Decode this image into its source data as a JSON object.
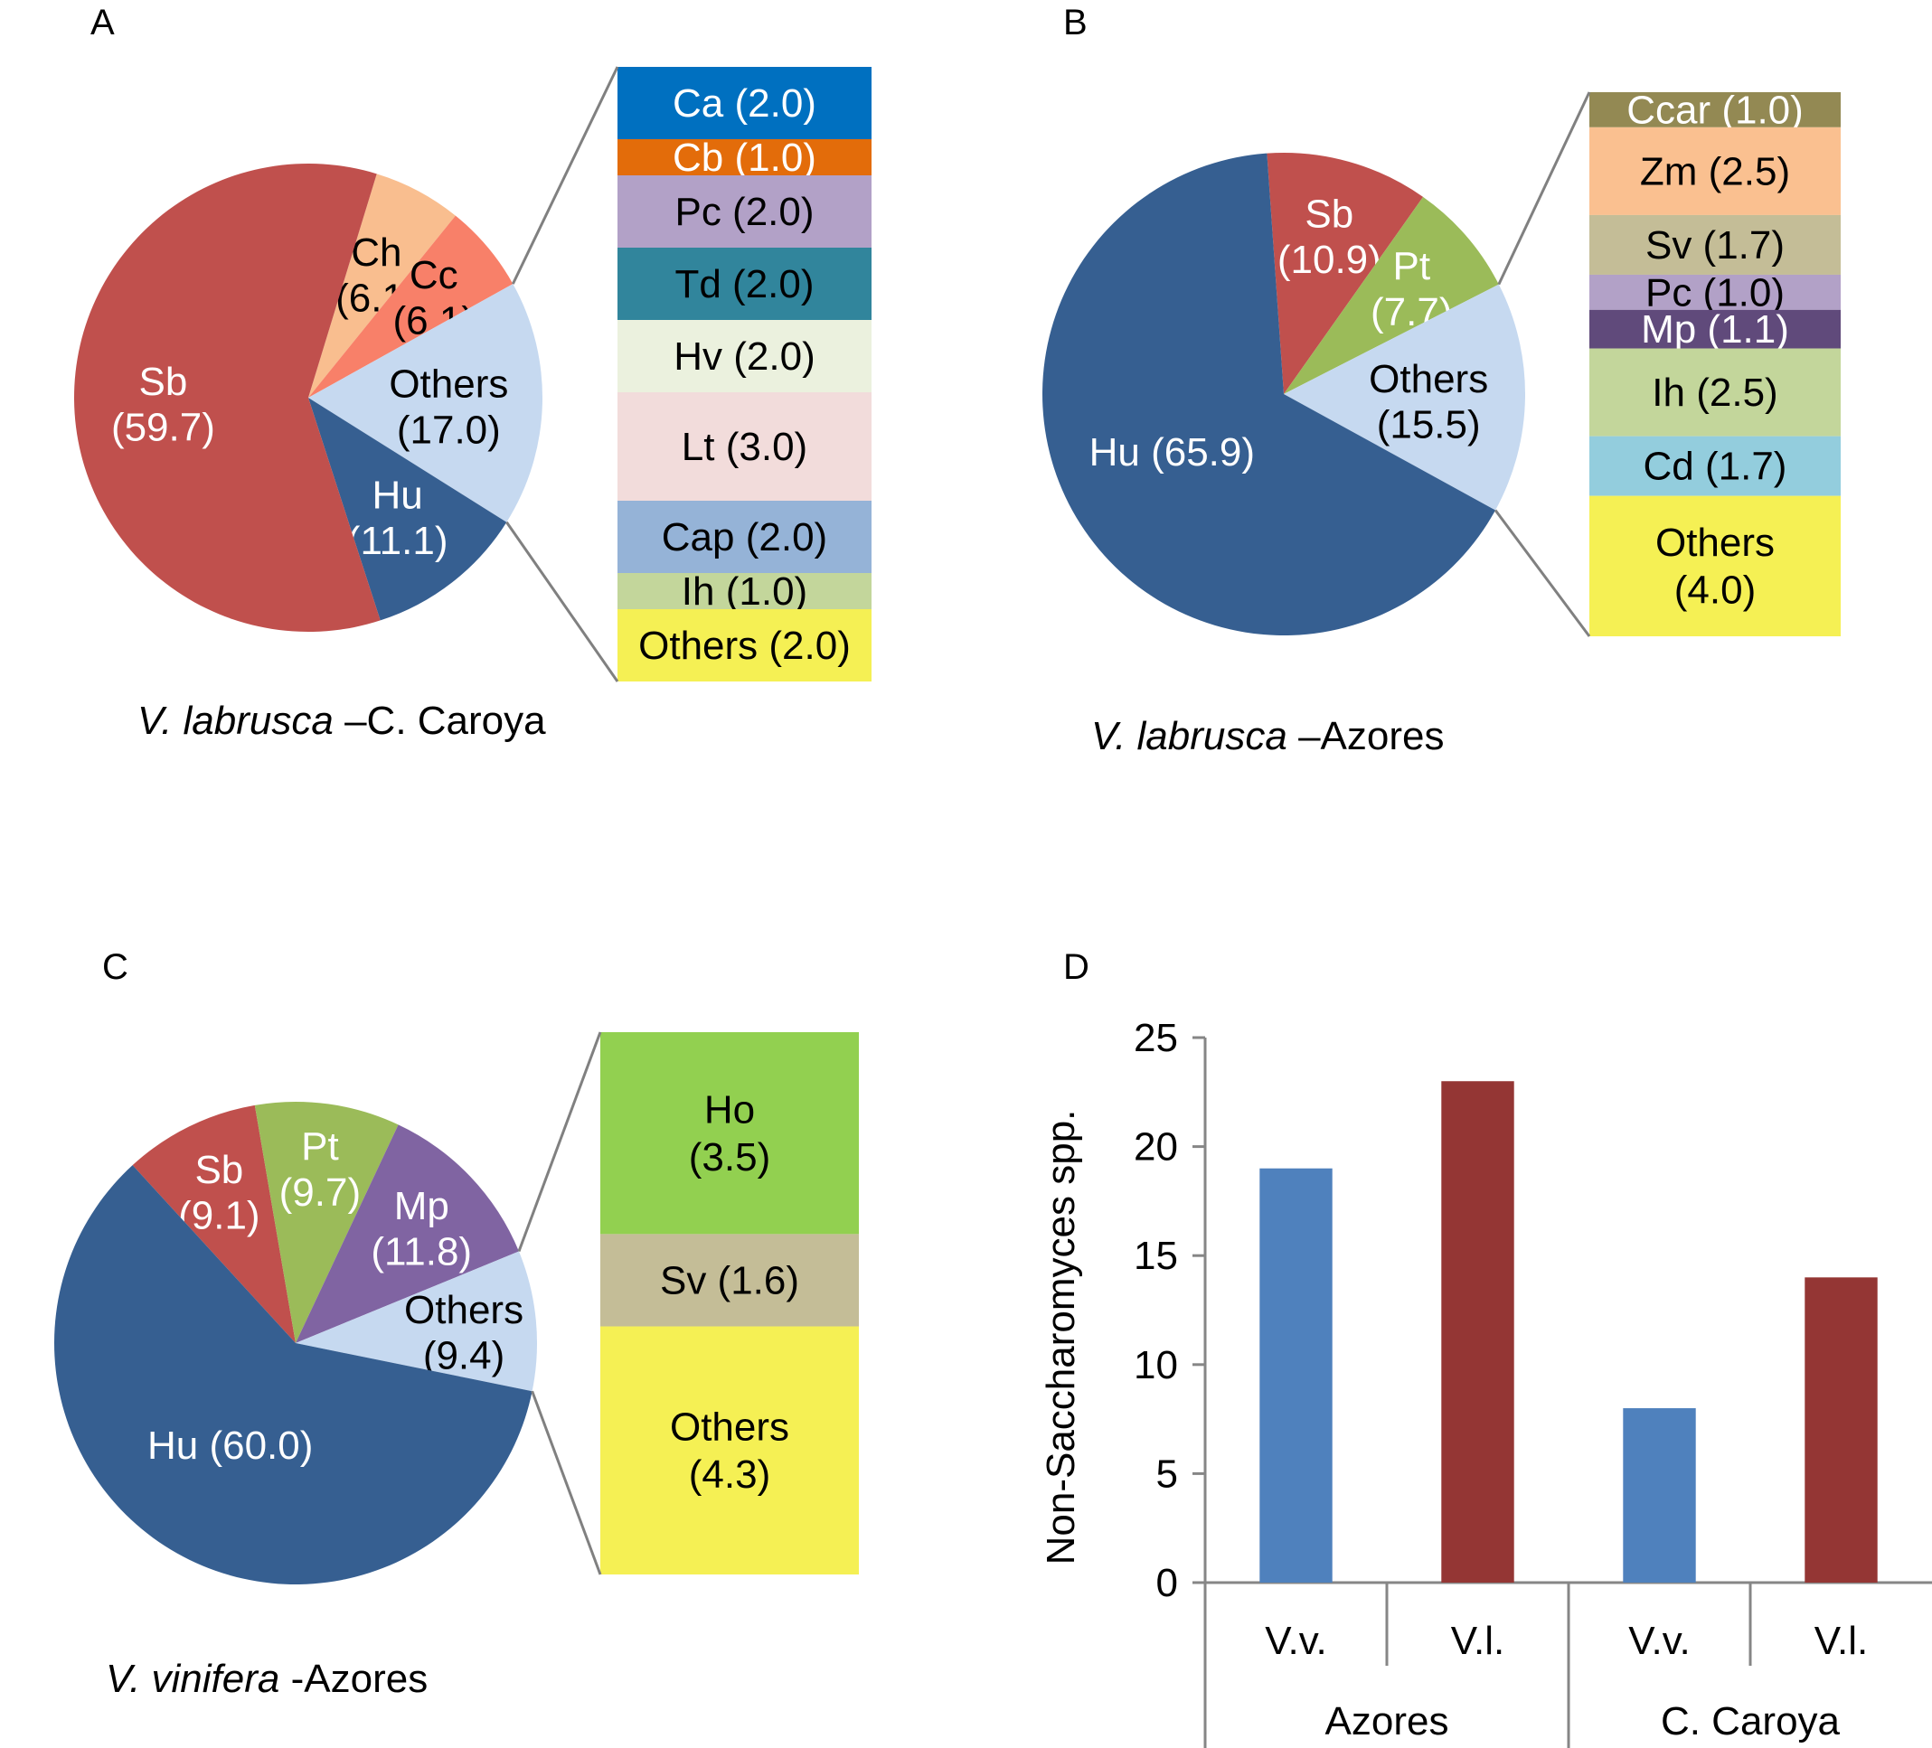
{
  "chart_data": [
    {
      "type": "pie",
      "panel": "A",
      "title": "V. labrusca –C. Caroya",
      "title_italic": "V. labrusca",
      "title_rest": " –C. Caroya",
      "slices": [
        {
          "label": "Ch",
          "value": 6.1,
          "color": "#F9BE8F",
          "text_color": "#000000"
        },
        {
          "label": "Cc",
          "value": 6.1,
          "color": "#F88069",
          "text_color": "#000000"
        },
        {
          "label": "Others",
          "value": 17.0,
          "color": "#C6D9F0",
          "text_color": "#000000"
        },
        {
          "label": "Hu",
          "value": 11.1,
          "color": "#365F91",
          "text_color": "#FFFFFF"
        },
        {
          "label": "Sb",
          "value": 59.7,
          "color": "#C0504D",
          "text_color": "#FFFFFF"
        }
      ],
      "breakdown": [
        {
          "label": "Ca",
          "value": 2.0,
          "color": "#0070C0",
          "text_color": "#FFFFFF"
        },
        {
          "label": "Cb",
          "value": 1.0,
          "color": "#E36C0A",
          "text_color": "#FFFFFF"
        },
        {
          "label": "Pc",
          "value": 2.0,
          "color": "#B2A1C7",
          "text_color": "#000000"
        },
        {
          "label": "Td",
          "value": 2.0,
          "color": "#31859C",
          "text_color": "#000000"
        },
        {
          "label": "Hv",
          "value": 2.0,
          "color": "#EBF1DE",
          "text_color": "#000000"
        },
        {
          "label": "Lt",
          "value": 3.0,
          "color": "#F2DCDB",
          "text_color": "#000000"
        },
        {
          "label": "Cap",
          "value": 2.0,
          "color": "#95B3D7",
          "text_color": "#000000"
        },
        {
          "label": "Ih",
          "value": 1.0,
          "color": "#C3D69B",
          "text_color": "#000000"
        },
        {
          "label": "Others",
          "value": 2.0,
          "color": "#F5F054",
          "text_color": "#000000"
        }
      ]
    },
    {
      "type": "pie",
      "panel": "B",
      "title": "V. labrusca –Azores",
      "title_italic": "V. labrusca",
      "title_rest": " –Azores",
      "slices": [
        {
          "label": "Sb",
          "value": 10.9,
          "color": "#C0504D",
          "text_color": "#FFFFFF"
        },
        {
          "label": "Pt",
          "value": 7.7,
          "color": "#9BBB59",
          "text_color": "#FFFFFF"
        },
        {
          "label": "Others",
          "value": 15.5,
          "color": "#C6D9F0",
          "text_color": "#000000"
        },
        {
          "label": "Hu",
          "value": 65.9,
          "color": "#365F91",
          "text_color": "#FFFFFF"
        }
      ],
      "breakdown": [
        {
          "label": "Ccar",
          "value": 1.0,
          "color": "#938953",
          "text_color": "#FFFFFF"
        },
        {
          "label": "Zm",
          "value": 2.5,
          "color": "#FAC090",
          "text_color": "#000000"
        },
        {
          "label": "Sv",
          "value": 1.7,
          "color": "#C4BD97",
          "text_color": "#000000"
        },
        {
          "label": "Pc",
          "value": 1.0,
          "color": "#B2A1C7",
          "text_color": "#000000"
        },
        {
          "label": "Mp",
          "value": 1.1,
          "color": "#604A7B",
          "text_color": "#FFFFFF"
        },
        {
          "label": "Ih",
          "value": 2.5,
          "color": "#C3D69B",
          "text_color": "#000000"
        },
        {
          "label": "Cd",
          "value": 1.7,
          "color": "#93CDDD",
          "text_color": "#000000"
        },
        {
          "label": "Others",
          "value": 4.0,
          "color": "#F5F054",
          "text_color": "#000000"
        }
      ]
    },
    {
      "type": "pie",
      "panel": "C",
      "title": "V. vinifera -Azores",
      "title_italic": "V. vinifera",
      "title_rest": " -Azores",
      "slices": [
        {
          "label": "Sb",
          "value": 9.1,
          "color": "#C0504D",
          "text_color": "#FFFFFF"
        },
        {
          "label": "Pt",
          "value": 9.7,
          "color": "#9BBB59",
          "text_color": "#FFFFFF"
        },
        {
          "label": "Mp",
          "value": 11.8,
          "color": "#8064A2",
          "text_color": "#FFFFFF"
        },
        {
          "label": "Others",
          "value": 9.4,
          "color": "#C6D9F0",
          "text_color": "#000000"
        },
        {
          "label": "Hu",
          "value": 60.0,
          "color": "#365F91",
          "text_color": "#FFFFFF"
        }
      ],
      "breakdown": [
        {
          "label": "Ho",
          "value": 3.5,
          "color": "#92D050",
          "text_color": "#000000"
        },
        {
          "label": "Sv",
          "value": 1.6,
          "color": "#C4BD97",
          "text_color": "#000000"
        },
        {
          "label": "Others",
          "value": 4.3,
          "color": "#F5F054",
          "text_color": "#000000"
        }
      ]
    },
    {
      "type": "bar",
      "panel": "D",
      "title": "",
      "ylabel": "Non-Saccharomyces spp.",
      "xlabel": "",
      "ylim": [
        0,
        25
      ],
      "yticks": [
        0,
        5,
        10,
        15,
        20,
        25
      ],
      "categories": [
        "V.v.",
        "V.l.",
        "V.v.",
        "V.l."
      ],
      "groups": [
        "Azores",
        "C. Caroya"
      ],
      "values": [
        19,
        23,
        8,
        14
      ],
      "colors": [
        "#4F81BD",
        "#943634",
        "#4F81BD",
        "#943634"
      ],
      "grid": false
    }
  ],
  "panel_letters": [
    "A",
    "B",
    "C",
    "D"
  ]
}
